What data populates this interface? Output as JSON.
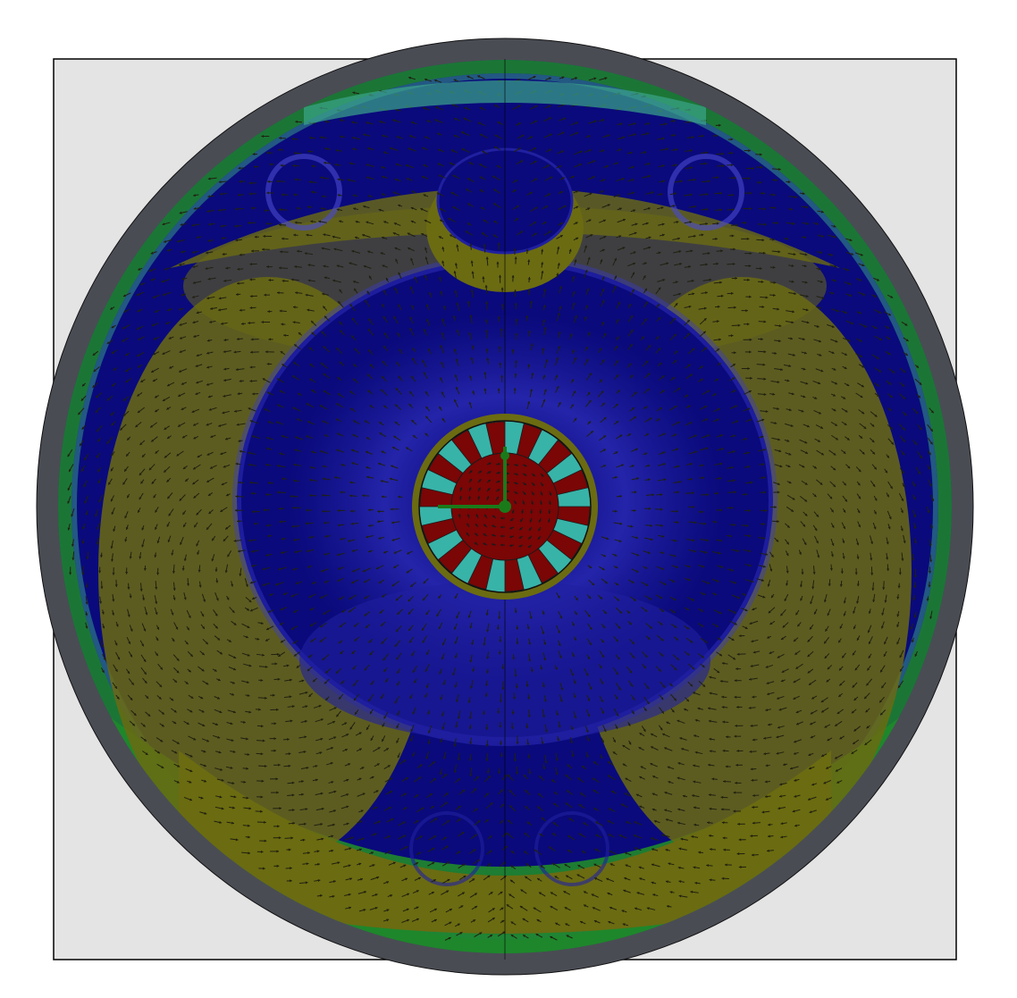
{
  "figure": {
    "description_free": true,
    "colors": {
      "page_background": "#ffffff",
      "domain_background": "#e4e4e4",
      "domain_border": "#000000",
      "outer_ring": "#4a4c54",
      "flow_deep_blue": "#0a0a7c",
      "flow_blue": "#2020a0",
      "flow_light_blue": "#4a4ad0",
      "flow_olive": "#6b6b12",
      "flow_green": "#1f8a2a",
      "flow_teal": "#3aa58a",
      "arrow_color": "#202010",
      "rotor_red": "#7a0606",
      "rotor_teal": "#38b3a8",
      "rotor_green_line": "#1a7a1a"
    },
    "rotor": {
      "segment_count": 14
    },
    "icons": [
      "vector-arrow-icon"
    ]
  }
}
